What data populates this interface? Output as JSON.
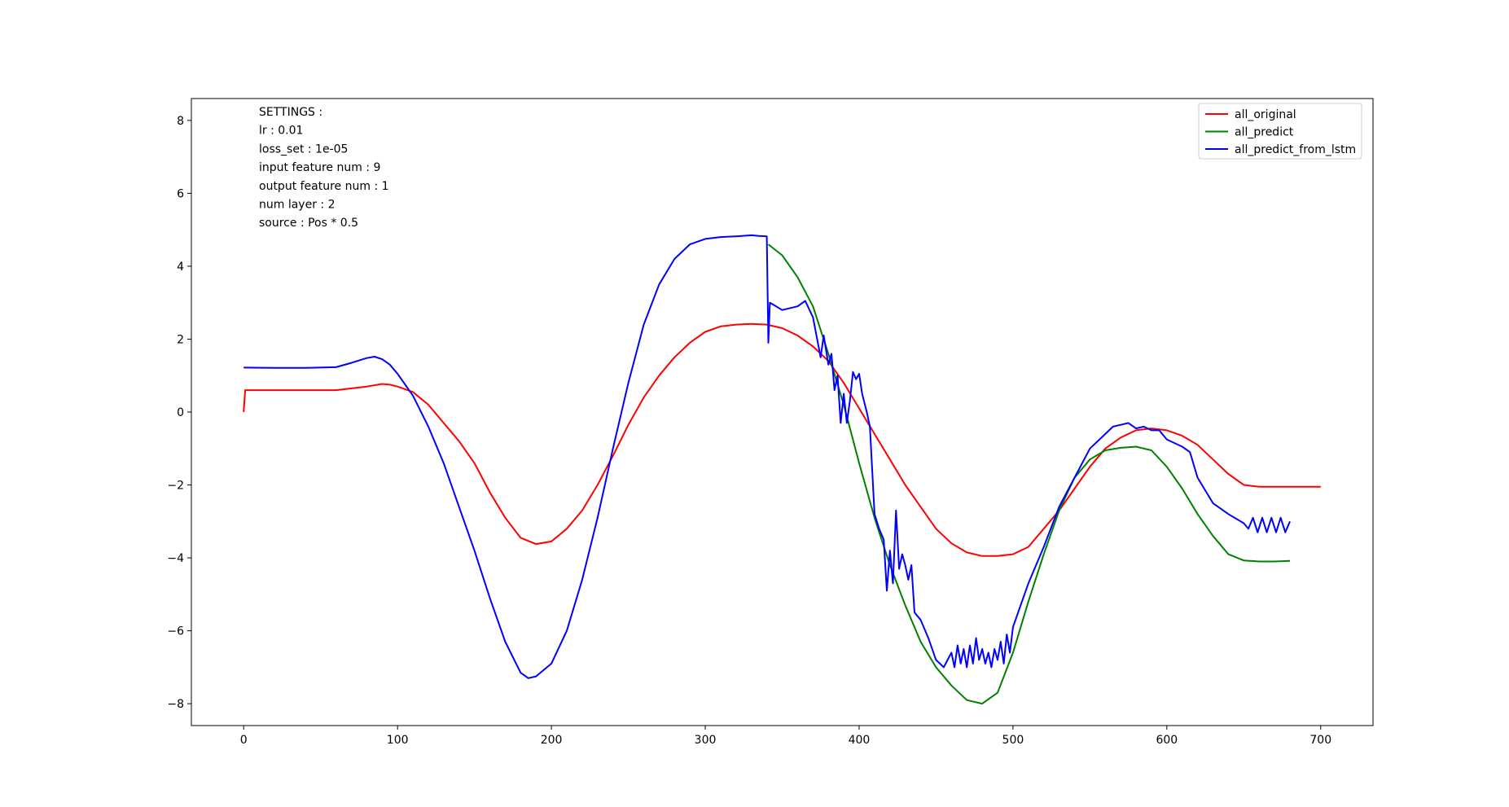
{
  "chart_data": {
    "type": "line",
    "title": "",
    "xlabel": "",
    "ylabel": "",
    "xlim": [
      -34,
      734
    ],
    "ylim": [
      -8.6,
      8.6
    ],
    "x_ticks": [
      0,
      100,
      200,
      300,
      400,
      500,
      600,
      700
    ],
    "y_ticks": [
      -8,
      -6,
      -4,
      -2,
      0,
      2,
      4,
      6,
      8
    ],
    "x_tick_labels": [
      "0",
      "100",
      "200",
      "300",
      "400",
      "500",
      "600",
      "700"
    ],
    "y_tick_labels": [
      "−8",
      "−6",
      "−4",
      "−2",
      "0",
      "2",
      "4",
      "6",
      "8"
    ],
    "grid": false,
    "legend_position": "top-right",
    "annotation_lines": [
      "SETTINGS :",
      "lr : 0.01",
      "loss_set : 1e-05",
      "input feature num : 9",
      "output feature num : 1",
      "num layer : 2",
      "source : Pos * 0.5"
    ],
    "series": [
      {
        "name": "all_original",
        "color": "#ff0000",
        "x": [
          0,
          1,
          20,
          40,
          60,
          80,
          90,
          95,
          100,
          110,
          120,
          130,
          140,
          150,
          160,
          170,
          180,
          190,
          200,
          210,
          220,
          230,
          240,
          250,
          260,
          270,
          280,
          290,
          300,
          310,
          320,
          330,
          340,
          350,
          360,
          370,
          380,
          390,
          400,
          410,
          420,
          430,
          440,
          450,
          460,
          470,
          480,
          490,
          500,
          510,
          520,
          530,
          540,
          550,
          560,
          570,
          580,
          590,
          600,
          610,
          620,
          630,
          640,
          650,
          660,
          670,
          680,
          690,
          700
        ],
        "y": [
          0,
          0.6,
          0.6,
          0.6,
          0.6,
          0.7,
          0.77,
          0.75,
          0.7,
          0.55,
          0.2,
          -0.3,
          -0.8,
          -1.4,
          -2.2,
          -2.9,
          -3.45,
          -3.62,
          -3.55,
          -3.2,
          -2.7,
          -2.0,
          -1.2,
          -0.35,
          0.4,
          1.0,
          1.5,
          1.9,
          2.2,
          2.35,
          2.4,
          2.42,
          2.4,
          2.3,
          2.1,
          1.8,
          1.4,
          0.8,
          0.1,
          -0.6,
          -1.3,
          -2.0,
          -2.6,
          -3.2,
          -3.6,
          -3.85,
          -3.95,
          -3.95,
          -3.9,
          -3.7,
          -3.2,
          -2.7,
          -2.1,
          -1.5,
          -1.0,
          -0.7,
          -0.5,
          -0.45,
          -0.5,
          -0.65,
          -0.9,
          -1.3,
          -1.7,
          -2.0,
          -2.05,
          -2.05,
          -2.05,
          -2.05,
          -2.05
        ]
      },
      {
        "name": "all_predict",
        "color": "#008000",
        "x": [
          341,
          350,
          360,
          370,
          380,
          390,
          400,
          410,
          420,
          430,
          440,
          450,
          460,
          470,
          480,
          490,
          500,
          510,
          520,
          530,
          540,
          550,
          560,
          570,
          580,
          590,
          600,
          610,
          620,
          630,
          640,
          650,
          660,
          670,
          680
        ],
        "y": [
          4.6,
          4.3,
          3.7,
          2.9,
          1.6,
          0.2,
          -1.4,
          -2.9,
          -4.2,
          -5.3,
          -6.3,
          -7.0,
          -7.5,
          -7.9,
          -8.0,
          -7.7,
          -6.6,
          -5.2,
          -3.9,
          -2.7,
          -1.8,
          -1.3,
          -1.05,
          -0.98,
          -0.95,
          -1.05,
          -1.5,
          -2.1,
          -2.8,
          -3.4,
          -3.9,
          -4.07,
          -4.1,
          -4.1,
          -4.08
        ]
      },
      {
        "name": "all_predict_from_lstm",
        "color": "#0000ff",
        "x": [
          0,
          20,
          40,
          60,
          70,
          80,
          85,
          90,
          95,
          100,
          110,
          120,
          130,
          140,
          150,
          160,
          170,
          180,
          185,
          190,
          200,
          210,
          220,
          230,
          240,
          250,
          260,
          270,
          280,
          290,
          300,
          310,
          320,
          330,
          335,
          340,
          341,
          342,
          344,
          350,
          360,
          365,
          370,
          375,
          377,
          380,
          382,
          384,
          386,
          388,
          390,
          392,
          394,
          396,
          398,
          400,
          402,
          405,
          407,
          410,
          413,
          416,
          418,
          420,
          422,
          424,
          426,
          428,
          430,
          432,
          434,
          436,
          440,
          445,
          450,
          455,
          460,
          462,
          464,
          466,
          468,
          470,
          472,
          474,
          476,
          478,
          480,
          482,
          484,
          486,
          488,
          490,
          492,
          494,
          496,
          498,
          500,
          505,
          510,
          520,
          530,
          540,
          550,
          560,
          565,
          570,
          575,
          580,
          585,
          590,
          595,
          600,
          605,
          610,
          615,
          620,
          630,
          640,
          650,
          653,
          656,
          659,
          662,
          665,
          668,
          671,
          674,
          677,
          680
        ],
        "y": [
          1.22,
          1.21,
          1.21,
          1.23,
          1.35,
          1.48,
          1.52,
          1.45,
          1.3,
          1.05,
          0.45,
          -0.4,
          -1.4,
          -2.6,
          -3.8,
          -5.1,
          -6.3,
          -7.15,
          -7.3,
          -7.25,
          -6.9,
          -6.0,
          -4.6,
          -2.9,
          -1.0,
          0.8,
          2.4,
          3.5,
          4.2,
          4.6,
          4.75,
          4.8,
          4.82,
          4.85,
          4.83,
          4.82,
          1.9,
          3.0,
          2.95,
          2.8,
          2.9,
          3.05,
          2.6,
          1.5,
          2.1,
          1.3,
          1.6,
          0.6,
          1.0,
          -0.3,
          0.5,
          -0.3,
          0.3,
          1.1,
          0.9,
          1.05,
          0.5,
          0.0,
          -0.4,
          -2.8,
          -3.2,
          -3.5,
          -4.9,
          -3.8,
          -4.7,
          -2.7,
          -4.3,
          -3.9,
          -4.2,
          -4.6,
          -4.2,
          -5.5,
          -5.7,
          -6.2,
          -6.8,
          -7.0,
          -6.6,
          -7.0,
          -6.4,
          -6.9,
          -6.5,
          -7.0,
          -6.4,
          -6.9,
          -6.2,
          -6.8,
          -6.5,
          -6.9,
          -6.6,
          -7.0,
          -6.5,
          -6.8,
          -6.3,
          -6.9,
          -6.1,
          -6.6,
          -5.9,
          -5.3,
          -4.7,
          -3.7,
          -2.6,
          -1.8,
          -1.0,
          -0.6,
          -0.4,
          -0.35,
          -0.3,
          -0.45,
          -0.4,
          -0.5,
          -0.5,
          -0.75,
          -0.85,
          -0.95,
          -1.1,
          -1.8,
          -2.5,
          -2.8,
          -3.05,
          -3.2,
          -2.9,
          -3.3,
          -2.9,
          -3.3,
          -2.9,
          -3.3,
          -2.9,
          -3.3,
          -3.0
        ]
      }
    ]
  }
}
